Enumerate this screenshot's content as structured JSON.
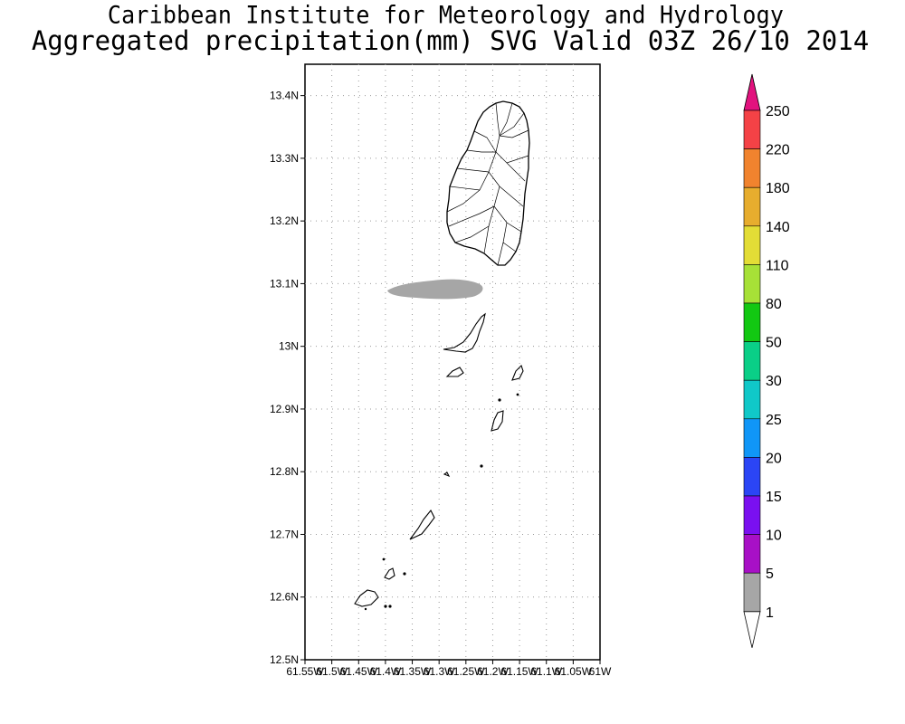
{
  "title": {
    "line1": "Caribbean Institute for Meteorology and Hydrology",
    "line2": "Aggregated precipitation(mm) SVG Valid 03Z 26/10 2014"
  },
  "map": {
    "lat_range": [
      12.5,
      13.45
    ],
    "lon_range": [
      -61.55,
      -61.0
    ],
    "y_tick_labels": [
      "13.4N",
      "13.3N",
      "13.2N",
      "13.1N",
      "13N",
      "12.9N",
      "12.8N",
      "12.7N",
      "12.6N",
      "12.5N"
    ],
    "x_tick_labels": [
      "61.55W",
      "61.5W",
      "61.45W",
      "61.4W",
      "61.35W",
      "61.3W",
      "61.25W",
      "61.2W",
      "61.15W",
      "61.1W",
      "61.05W",
      "61W"
    ],
    "grid": true,
    "precip_area": {
      "category": "1-5 mm",
      "color": "#a6a6a6"
    }
  },
  "legend": {
    "labels": [
      "250",
      "220",
      "180",
      "140",
      "110",
      "80",
      "50",
      "30",
      "25",
      "20",
      "15",
      "10",
      "5",
      "1"
    ],
    "colors": [
      "#e2127e",
      "#f44246",
      "#f1832e",
      "#e7ad2e",
      "#e3dd36",
      "#a7e137",
      "#12c812",
      "#0acf87",
      "#10c8c8",
      "#1096f7",
      "#2b45f5",
      "#7a10f0",
      "#a810c6",
      "#a6a6a6"
    ]
  }
}
